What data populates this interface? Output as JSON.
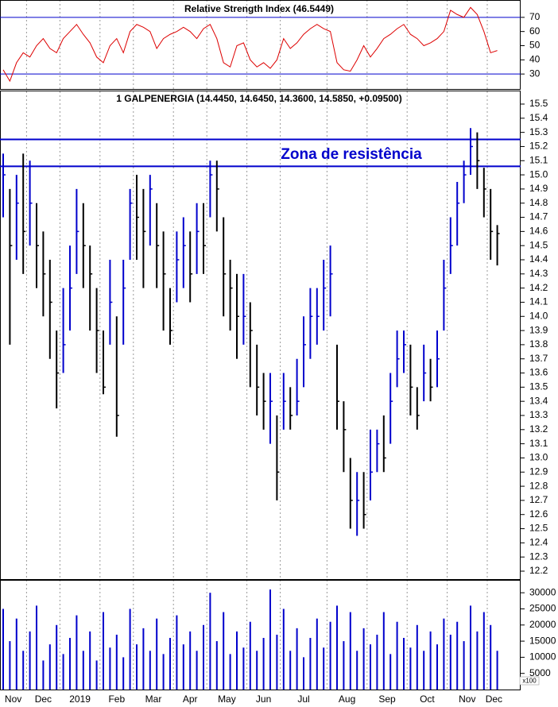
{
  "chart_data": [
    {
      "type": "line",
      "title": "Relative Strength Index (46.5449)",
      "color": "#dd0000",
      "ylim": [
        20,
        80
      ],
      "yticks": [
        30,
        40,
        50,
        60,
        70
      ],
      "hlines": [
        70,
        30
      ],
      "hline_color": "#0000cc",
      "values": [
        33,
        25,
        38,
        45,
        42,
        50,
        55,
        48,
        45,
        55,
        60,
        65,
        58,
        52,
        42,
        38,
        50,
        55,
        45,
        60,
        65,
        63,
        60,
        48,
        55,
        58,
        60,
        63,
        60,
        55,
        62,
        65,
        55,
        38,
        35,
        50,
        52,
        40,
        35,
        38,
        34,
        40,
        55,
        48,
        52,
        58,
        62,
        65,
        62,
        60,
        38,
        33,
        32,
        40,
        50,
        42,
        48,
        55,
        58,
        62,
        65,
        58,
        55,
        50,
        52,
        55,
        60,
        75,
        72,
        70,
        77,
        72,
        60,
        45,
        46.5449
      ]
    },
    {
      "type": "ohlc",
      "title": "1 GALPENERGIA (14.4450, 14.6450, 14.3600, 14.5850, +0.09500)",
      "up_color": "#0000cc",
      "down_color": "#000000",
      "ylim": [
        12.2,
        15.5
      ],
      "yticks": [
        12.2,
        12.3,
        12.4,
        12.5,
        12.6,
        12.7,
        12.8,
        12.9,
        {
          "value": 13,
          "label": "13.0"
        },
        13.1,
        13.2,
        13.3,
        13.4,
        13.5,
        13.6,
        13.7,
        13.8,
        13.9,
        {
          "value": 14,
          "label": "14.0"
        },
        14.1,
        14.2,
        14.3,
        14.4,
        14.5,
        14.6,
        14.7,
        14.8,
        14.9,
        {
          "value": 15,
          "label": "15.0"
        },
        15.1,
        15.2,
        15.3,
        15.4,
        15.5
      ],
      "hlines": [
        15.25,
        15.06
      ],
      "hline_color": "#0000cc",
      "annotation": "Zona de resistência",
      "x": [
        "Nov",
        "Nov",
        "Nov",
        "Nov",
        "Dec",
        "Dec",
        "Dec",
        "Dec",
        "Dec",
        "2019",
        "2019",
        "2019",
        "2019",
        "2019",
        "2019",
        "Feb",
        "Feb",
        "Feb",
        "Feb",
        "Feb",
        "Mar",
        "Mar",
        "Mar",
        "Mar",
        "Mar",
        "Mar",
        "Apr",
        "Apr",
        "Apr",
        "Apr",
        "Apr",
        "May",
        "May",
        "May",
        "May",
        "May",
        "May",
        "Jun",
        "Jun",
        "Jun",
        "Jun",
        "Jun",
        "Jul",
        "Jul",
        "Jul",
        "Jul",
        "Jul",
        "Jul",
        "Jul",
        "Aug",
        "Aug",
        "Aug",
        "Aug",
        "Aug",
        "Aug",
        "Sep",
        "Sep",
        "Sep",
        "Sep",
        "Sep",
        "Sep",
        "Oct",
        "Oct",
        "Oct",
        "Oct",
        "Oct",
        "Oct",
        "Nov",
        "Nov",
        "Nov",
        "Nov",
        "Nov",
        "Nov",
        "Dec",
        "Dec"
      ],
      "high": [
        15.15,
        14.9,
        15.0,
        15.15,
        15.1,
        14.8,
        14.6,
        14.4,
        13.9,
        14.2,
        14.5,
        14.9,
        14.8,
        14.5,
        14.2,
        13.9,
        14.4,
        14.0,
        14.4,
        14.9,
        15.0,
        14.9,
        15.0,
        14.8,
        14.6,
        14.2,
        14.6,
        14.7,
        14.6,
        14.8,
        14.8,
        15.1,
        15.1,
        14.7,
        14.4,
        14.3,
        14.3,
        14.1,
        13.8,
        13.6,
        13.6,
        13.3,
        13.6,
        13.5,
        13.7,
        14.0,
        14.2,
        14.2,
        14.4,
        14.5,
        13.8,
        13.4,
        13.0,
        12.9,
        12.9,
        13.2,
        13.2,
        13.3,
        13.6,
        13.9,
        13.9,
        13.8,
        13.5,
        13.8,
        13.7,
        13.9,
        14.4,
        14.7,
        14.95,
        15.1,
        15.33,
        15.3,
        15.05,
        14.9,
        14.645
      ],
      "low": [
        14.7,
        13.8,
        14.4,
        14.3,
        14.5,
        14.2,
        14.0,
        13.7,
        13.35,
        13.6,
        13.9,
        14.3,
        14.2,
        13.9,
        13.6,
        13.45,
        13.8,
        13.15,
        13.8,
        14.4,
        14.4,
        14.2,
        14.5,
        14.2,
        13.9,
        13.8,
        14.1,
        14.2,
        14.1,
        14.3,
        14.3,
        14.7,
        14.6,
        14.0,
        13.9,
        13.7,
        13.8,
        13.5,
        13.3,
        13.2,
        13.1,
        12.7,
        13.2,
        13.2,
        13.3,
        13.5,
        13.7,
        13.8,
        13.9,
        14.0,
        13.2,
        12.9,
        12.5,
        12.45,
        12.5,
        12.7,
        12.9,
        12.9,
        13.1,
        13.5,
        13.6,
        13.3,
        13.2,
        13.4,
        13.4,
        13.5,
        13.9,
        14.3,
        14.5,
        14.8,
        15.0,
        14.9,
        14.7,
        14.4,
        14.36
      ],
      "close": [
        15.0,
        14.5,
        14.8,
        14.6,
        14.8,
        14.5,
        14.3,
        14.1,
        13.6,
        13.8,
        14.2,
        14.6,
        14.5,
        14.3,
        13.9,
        13.5,
        14.1,
        13.3,
        14.2,
        14.8,
        14.7,
        14.6,
        14.9,
        14.5,
        14.3,
        13.9,
        14.4,
        14.5,
        14.3,
        14.6,
        14.5,
        15.0,
        14.9,
        14.3,
        14.2,
        14.0,
        14.0,
        13.9,
        13.5,
        13.4,
        13.4,
        12.9,
        13.4,
        13.3,
        13.4,
        13.8,
        14.0,
        14.0,
        14.2,
        14.3,
        13.4,
        13.2,
        12.7,
        12.7,
        12.6,
        12.9,
        13.1,
        13.0,
        13.4,
        13.7,
        13.8,
        13.5,
        13.3,
        13.6,
        13.5,
        13.7,
        14.2,
        14.5,
        14.8,
        15.0,
        15.2,
        15.1,
        14.9,
        14.6,
        14.585
      ]
    },
    {
      "type": "bar",
      "color": "#0000cc",
      "unit": "x100",
      "ylim": [
        0,
        33000
      ],
      "yticks": [
        5000,
        10000,
        15000,
        20000,
        25000,
        30000
      ],
      "values": [
        25000,
        15000,
        22000,
        12000,
        18000,
        26000,
        9000,
        14000,
        20000,
        11000,
        16000,
        23000,
        12000,
        18000,
        9000,
        24000,
        13000,
        17000,
        10000,
        25000,
        14000,
        19000,
        12000,
        22000,
        11000,
        16000,
        23000,
        14000,
        18000,
        12000,
        20000,
        30000,
        15000,
        24000,
        11000,
        18000,
        13000,
        21000,
        12000,
        16000,
        31000,
        17000,
        25000,
        12000,
        19000,
        10000,
        16000,
        22000,
        13000,
        21000,
        26000,
        15000,
        24000,
        12000,
        19000,
        14000,
        17000,
        24000,
        11000,
        21000,
        16000,
        13000,
        20000,
        12000,
        18000,
        14000,
        22000,
        17000,
        21000,
        15000,
        26000,
        18000,
        24000,
        20000,
        12000
      ]
    }
  ]
}
